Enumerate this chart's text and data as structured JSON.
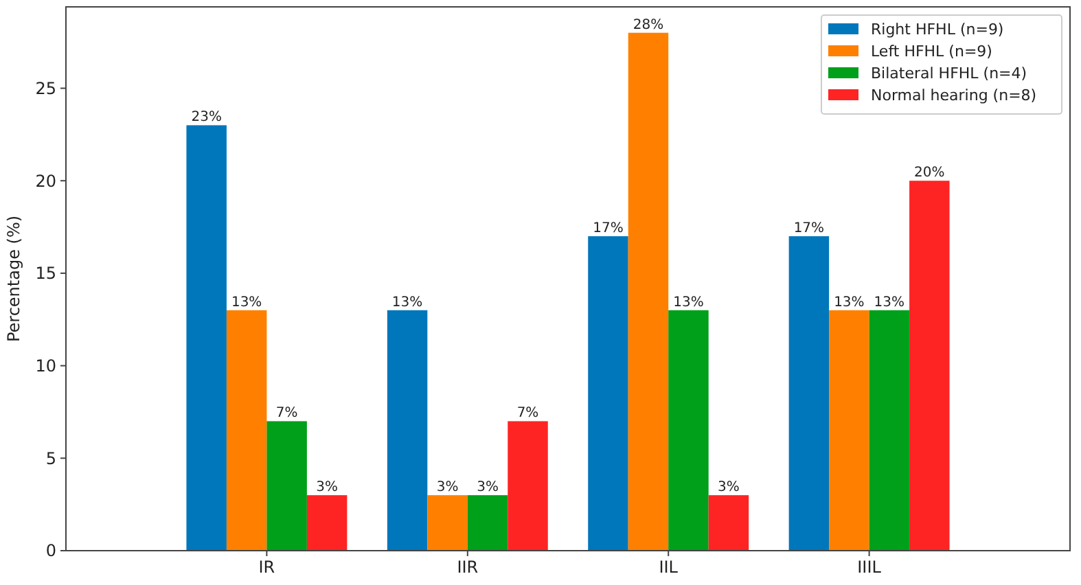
{
  "chart_data": {
    "type": "bar",
    "ylabel": "Percentage (%)",
    "categories": [
      "IR",
      "IIR",
      "IIL",
      "IIIL"
    ],
    "series": [
      {
        "name": "Right HFHL (n=9)",
        "color": "#0077bb",
        "values": [
          23,
          13,
          17,
          17
        ],
        "value_labels": [
          "23%",
          "13%",
          "17%",
          "17%"
        ]
      },
      {
        "name": "Left HFHL (n=9)",
        "color": "#ff8000",
        "values": [
          13,
          3,
          28,
          13
        ],
        "value_labels": [
          "13%",
          "3%",
          "28%",
          "13%"
        ]
      },
      {
        "name": "Bilateral HFHL (n=4)",
        "color": "#00a01a",
        "values": [
          7,
          3,
          13,
          13
        ],
        "value_labels": [
          "7%",
          "3%",
          "13%",
          "13%"
        ]
      },
      {
        "name": "Normal hearing (n=8)",
        "color": "#ff2424",
        "values": [
          3,
          7,
          3,
          20
        ],
        "value_labels": [
          "3%",
          "7%",
          "3%",
          "20%"
        ]
      }
    ],
    "ylim": [
      0,
      29.4
    ],
    "yticks": [
      0,
      5,
      10,
      15,
      20,
      25
    ],
    "grid": false,
    "legend": "top right"
  }
}
